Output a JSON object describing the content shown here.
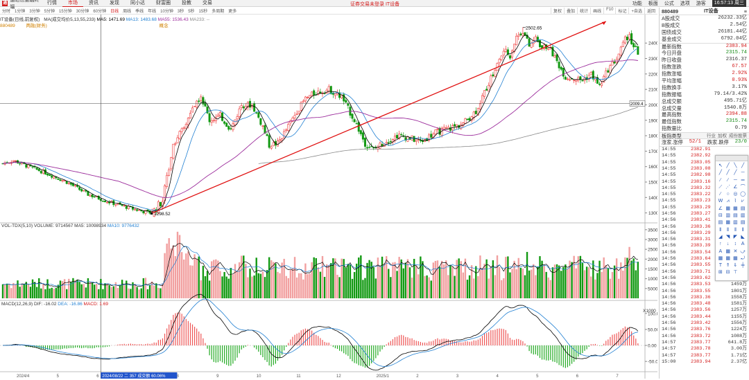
{
  "topbar": {
    "app_name": "通达信金融终端",
    "menu": [
      "行情",
      "市场",
      "资讯",
      "发现",
      "同小达",
      "财富圈",
      "投教",
      "交易"
    ],
    "active_menu": "市场",
    "notice": "证券交易未登录 IT设备",
    "right_items": [
      "功能",
      "板面",
      "公式",
      "选项"
    ],
    "user": "游客",
    "clock": "16:57:13 周三"
  },
  "period_bar": {
    "items": [
      "分时",
      "1分钟",
      "3分钟",
      "5分钟",
      "15分钟",
      "30分钟",
      "60分钟",
      "日线",
      "周线",
      "季线",
      "年线",
      "10分钟",
      "3秒",
      "5秒",
      "15秒",
      "多周期",
      "更多"
    ],
    "selected": "日线",
    "tools": [
      "复权",
      "叠加",
      "统计",
      "画线",
      "F10",
      "标记",
      "+自选",
      "返回"
    ]
  },
  "main_legend": {
    "prefix": "IT设备(日线,前复权)",
    "ma": "MA(成交均价5,13,55,233)",
    "ma5": "MA5: 1471.69",
    "ma13": "MA13: 1483.68",
    "ma55": "MA55: 1536.43",
    "ma233": "MA233: --",
    "code": "880489",
    "sub1": "两融(财务)",
    "sub2": "概念"
  },
  "vol_legend": {
    "name": "VOL-TDX(5,10)",
    "volume": "VOLUME: 9714567",
    "ma5": "MA5: 10098934",
    "ma10": "MA10: 9776432"
  },
  "macd_legend": {
    "name": "MACD(12,26,9)",
    "dif": "DIF: -16.02",
    "dea": "DEA: -16.86",
    "macd": "MACD: 1.69"
  },
  "annotations": {
    "high": "2502.65",
    "low": "1298.52",
    "cur": "2009.4",
    "cursor_info": "2024/08/22 二 357 成交额 60.06%",
    "x1000": "X1000"
  },
  "x_axis": [
    "2024/4",
    "5",
    "6",
    "7",
    "8",
    "9",
    "10",
    "11",
    "12",
    "2025/1",
    "2",
    "3",
    "4",
    "5",
    "6",
    "7"
  ],
  "chart_data": {
    "type": "candlestick",
    "price_axis": {
      "ticks": [
        1300,
        1400,
        1500,
        1600,
        1700,
        1800,
        1900,
        2000,
        2100,
        2200,
        2300,
        2400
      ],
      "ylim": [
        1240,
        2540
      ]
    },
    "vol_axis": {
      "ticks": [
        5000,
        10000,
        15000,
        20000,
        25000,
        30000,
        35000
      ],
      "ylim": [
        0,
        36000
      ],
      "unit": "X1000"
    },
    "macd_axis": {
      "ticks": [
        -50,
        0,
        50,
        100
      ],
      "ylim": [
        -80,
        130
      ]
    },
    "anchors_close": [
      [
        0,
        1620
      ],
      [
        5,
        1640
      ],
      [
        12,
        1600
      ],
      [
        20,
        1560
      ],
      [
        30,
        1500
      ],
      [
        40,
        1420
      ],
      [
        50,
        1370
      ],
      [
        60,
        1330
      ],
      [
        66,
        1310
      ],
      [
        70,
        1300
      ],
      [
        75,
        1380
      ],
      [
        80,
        1750
      ],
      [
        85,
        1850
      ],
      [
        90,
        2000
      ],
      [
        93,
        2060
      ],
      [
        97,
        1900
      ],
      [
        102,
        1930
      ],
      [
        107,
        1840
      ],
      [
        112,
        2000
      ],
      [
        117,
        2000
      ],
      [
        122,
        1860
      ],
      [
        125,
        1740
      ],
      [
        129,
        1750
      ],
      [
        134,
        1860
      ],
      [
        138,
        1960
      ],
      [
        142,
        2040
      ],
      [
        147,
        2080
      ],
      [
        153,
        2100
      ],
      [
        159,
        2050
      ],
      [
        165,
        1900
      ],
      [
        170,
        1750
      ],
      [
        174,
        1710
      ],
      [
        179,
        1760
      ],
      [
        185,
        1800
      ],
      [
        190,
        1790
      ],
      [
        196,
        1760
      ],
      [
        203,
        1820
      ],
      [
        210,
        1850
      ],
      [
        216,
        1880
      ],
      [
        222,
        1960
      ],
      [
        228,
        2140
      ],
      [
        232,
        2260
      ],
      [
        235,
        2350
      ],
      [
        238,
        2320
      ],
      [
        241,
        2440
      ],
      [
        244,
        2480
      ],
      [
        247,
        2380
      ],
      [
        250,
        2430
      ],
      [
        253,
        2370
      ],
      [
        256,
        2380
      ],
      [
        260,
        2280
      ],
      [
        264,
        2180
      ],
      [
        268,
        2170
      ],
      [
        272,
        2160
      ],
      [
        276,
        2200
      ],
      [
        280,
        2120
      ],
      [
        284,
        2230
      ],
      [
        288,
        2300
      ],
      [
        292,
        2420
      ],
      [
        294,
        2440
      ],
      [
        296,
        2380
      ],
      [
        298,
        2340
      ]
    ],
    "ma_colors": {
      "ma5": "#000000",
      "ma13": "#1f7fd2",
      "ma55": "#9c2d9c",
      "ma233": "#888888"
    },
    "trend_line": {
      "from": [
        70,
        1298.52
      ],
      "to": [
        283,
        2540
      ]
    }
  },
  "right_panel": {
    "code": "880489",
    "name": "IT设备",
    "rows1": [
      [
        "A股成交",
        "26232.33亿"
      ],
      [
        "B股成交",
        "2.54亿"
      ],
      [
        "国债成交",
        "26181.44亿"
      ],
      [
        "基金成交",
        "6792.04亿"
      ]
    ],
    "rows2": [
      [
        "最新指数",
        "2383.94",
        "red"
      ],
      [
        "今日开盘",
        "2315.74",
        "green"
      ],
      [
        "昨日收盘",
        "2316.37",
        ""
      ],
      [
        "指数涨跌",
        "67.57",
        "red"
      ],
      [
        "指数涨幅",
        "2.92%",
        "red"
      ],
      [
        "平均涨幅",
        "0.93%",
        "red"
      ],
      [
        "指数换手",
        "3.17%",
        ""
      ],
      [
        "指数振幅",
        "79.14/3.42%",
        ""
      ],
      [
        "总成交额",
        "495.71亿",
        ""
      ],
      [
        "总成交量",
        "1540.8万",
        ""
      ],
      [
        "最高指数",
        "2394.88",
        "red"
      ],
      [
        "最低指数",
        "2315.74",
        "green"
      ],
      [
        "指数量比",
        "0.79",
        ""
      ]
    ],
    "board_title": "板指类型",
    "board_links": [
      "行业",
      "加权",
      "成份股票"
    ],
    "updown": {
      "label1": "涨家.涨停",
      "v1": "52/1",
      "label2": "跌家.跌停",
      "v2": "23/0"
    },
    "ticks": [
      [
        "14:55",
        "2382.91",
        ""
      ],
      [
        "14:55",
        "2382.92",
        ""
      ],
      [
        "14:55",
        "2383.05",
        ""
      ],
      [
        "14:55",
        "2383.08",
        ""
      ],
      [
        "14:55",
        "2382.98",
        ""
      ],
      [
        "14:55",
        "2383.16",
        ""
      ],
      [
        "14:55",
        "2383.32",
        ""
      ],
      [
        "14:55",
        "2383.22",
        ""
      ],
      [
        "14:55",
        "2383.23",
        ""
      ],
      [
        "14:55",
        "2383.29",
        ""
      ],
      [
        "14:56",
        "2383.27",
        ""
      ],
      [
        "14:56",
        "2383.41",
        ""
      ],
      [
        "14:56",
        "2383.36",
        ""
      ],
      [
        "14:56",
        "2383.29",
        ""
      ],
      [
        "14:56",
        "2383.31",
        ""
      ],
      [
        "14:56",
        "2383.39",
        ""
      ],
      [
        "14:56",
        "2383.54",
        ""
      ],
      [
        "14:56",
        "2383.64",
        ""
      ],
      [
        "14:56",
        "2383.55",
        ""
      ],
      [
        "14:56",
        "2383.71",
        ""
      ],
      [
        "14:56",
        "2383.62",
        "1369万"
      ],
      [
        "14:56",
        "2383.53",
        "1459万"
      ],
      [
        "14:56",
        "2383.55",
        "1801万"
      ],
      [
        "14:56",
        "2383.36",
        "1558万"
      ],
      [
        "14:56",
        "2383.48",
        "1581万"
      ],
      [
        "14:56",
        "2383.56",
        "1257万"
      ],
      [
        "14:56",
        "2383.44",
        "1155万"
      ],
      [
        "14:56",
        "2383.42",
        "1556万"
      ],
      [
        "14:56",
        "2383.76",
        "1224万"
      ],
      [
        "14:56",
        "2383.72",
        "1088万"
      ],
      [
        "14:57",
        "2383.77",
        "641.8万"
      ],
      [
        "14:57",
        "2383.78",
        "3.00万"
      ],
      [
        "14:57",
        "2383.77",
        "1.71亿"
      ],
      [
        "15:00",
        "2383.94",
        "2.37亿"
      ]
    ]
  },
  "draw_tools": [
    "↖",
    "╱",
    "╲",
    "╱",
    "╱",
    "╱",
    "╱",
    "─",
    "∕",
    "∕",
    "─",
    "═",
    "⟋",
    "⋰",
    "∠",
    "⌒",
    "∕",
    "○",
    "◎",
    "◯",
    "W",
    "⩘",
    "⌇",
    "⩗",
    "∠",
    "▦",
    "▦",
    "▤",
    "⊟",
    "▥",
    "▤",
    "▥",
    "▤",
    "▦",
    "▥",
    "▤",
    "⫴",
    "⫴",
    "⫴",
    "⫴",
    "◢",
    "◥",
    "◤",
    "◣",
    "↑",
    "↓",
    "↕",
    "A",
    "A",
    "▦",
    "✕",
    "⤻",
    "▦",
    "▦",
    "▦",
    "⤾",
    "T",
    "⇑",
    "⇓",
    "╪",
    "⊞",
    "⊟",
    "⊤",
    ""
  ]
}
